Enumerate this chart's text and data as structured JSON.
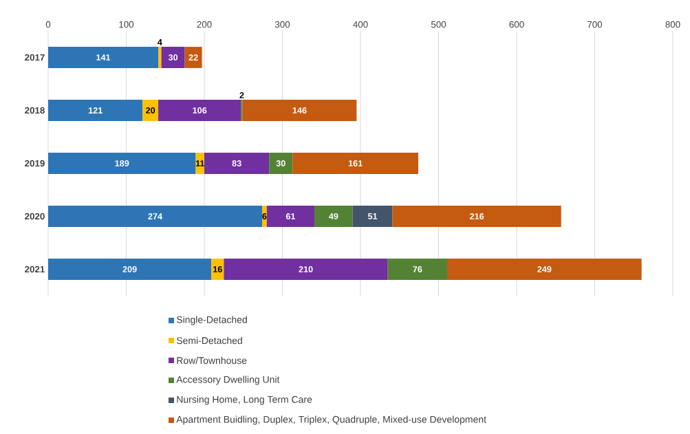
{
  "chart_data": {
    "type": "bar",
    "orientation": "horizontal",
    "stacked": true,
    "categories": [
      "2017",
      "2018",
      "2019",
      "2020",
      "2021"
    ],
    "series": [
      {
        "name": "Single-Detached",
        "color": "#2e75b6",
        "values": [
          141,
          121,
          189,
          274,
          209
        ]
      },
      {
        "name": "Semi-Detached",
        "color": "#ffc000",
        "values": [
          4,
          20,
          11,
          6,
          16
        ]
      },
      {
        "name": "Row/Townhouse",
        "color": "#7030a0",
        "values": [
          30,
          106,
          83,
          61,
          210
        ]
      },
      {
        "name": "Accessory Dwelling Unit",
        "color": "#548235",
        "values": [
          null,
          2,
          30,
          49,
          76
        ]
      },
      {
        "name": "Nursing Home, Long Term Care",
        "color": "#44546a",
        "values": [
          null,
          null,
          null,
          51,
          null
        ]
      },
      {
        "name": "Apartment Buidling, Duplex, Triplex, Quadruple, Mixed-use Development",
        "color": "#c55a11",
        "values": [
          22,
          146,
          161,
          216,
          249
        ]
      }
    ],
    "xlim": [
      0,
      800
    ],
    "xticks": [
      0,
      100,
      200,
      300,
      400,
      500,
      600,
      700,
      800
    ],
    "grid": "x",
    "data_labels": true,
    "legend": "bottom"
  }
}
